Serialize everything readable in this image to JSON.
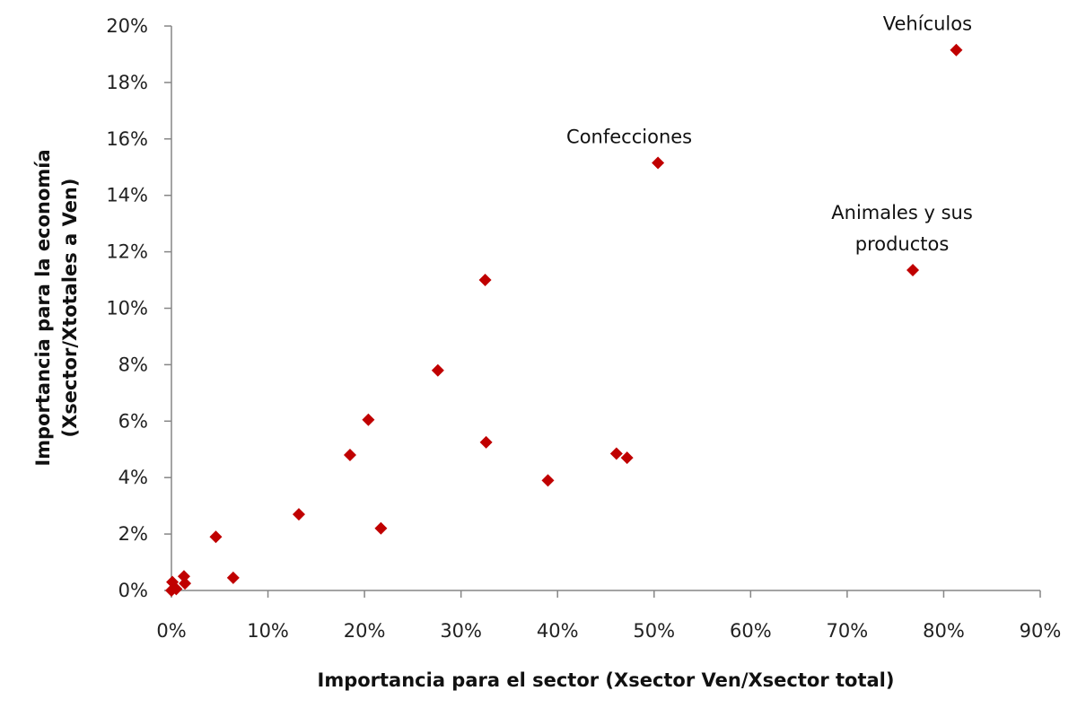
{
  "chart_data": {
    "type": "scatter",
    "title": "",
    "xlabel": "Importancia para el sector (Xsector Ven/Xsector total)",
    "ylabel_line1": "Importancia para la economía",
    "ylabel_line2": "(Xsector/Xtotales a Ven)",
    "xlim": [
      0,
      90
    ],
    "ylim": [
      0,
      20
    ],
    "xticks": [
      0,
      10,
      20,
      30,
      40,
      50,
      60,
      70,
      80,
      90
    ],
    "yticks": [
      0,
      2,
      4,
      6,
      8,
      10,
      12,
      14,
      16,
      18,
      20
    ],
    "tick_suffix": "%",
    "marker_color": "#c00000",
    "points": [
      {
        "x": 0.0,
        "y": 0.0
      },
      {
        "x": 0.1,
        "y": 0.3
      },
      {
        "x": 0.5,
        "y": 0.05
      },
      {
        "x": 1.3,
        "y": 0.5
      },
      {
        "x": 1.4,
        "y": 0.25
      },
      {
        "x": 4.6,
        "y": 1.9
      },
      {
        "x": 6.4,
        "y": 0.45
      },
      {
        "x": 13.2,
        "y": 2.7
      },
      {
        "x": 18.5,
        "y": 4.8
      },
      {
        "x": 20.4,
        "y": 6.05
      },
      {
        "x": 21.7,
        "y": 2.2
      },
      {
        "x": 27.6,
        "y": 7.8
      },
      {
        "x": 32.5,
        "y": 11.0
      },
      {
        "x": 32.6,
        "y": 5.25
      },
      {
        "x": 39.0,
        "y": 3.9
      },
      {
        "x": 46.1,
        "y": 4.85
      },
      {
        "x": 47.2,
        "y": 4.7
      },
      {
        "x": 50.4,
        "y": 15.15,
        "label": [
          "Confecciones"
        ]
      },
      {
        "x": 76.8,
        "y": 11.35,
        "label": [
          "Animales y sus",
          "productos"
        ]
      },
      {
        "x": 81.3,
        "y": 19.15,
        "label": [
          "Vehículos"
        ]
      }
    ]
  }
}
